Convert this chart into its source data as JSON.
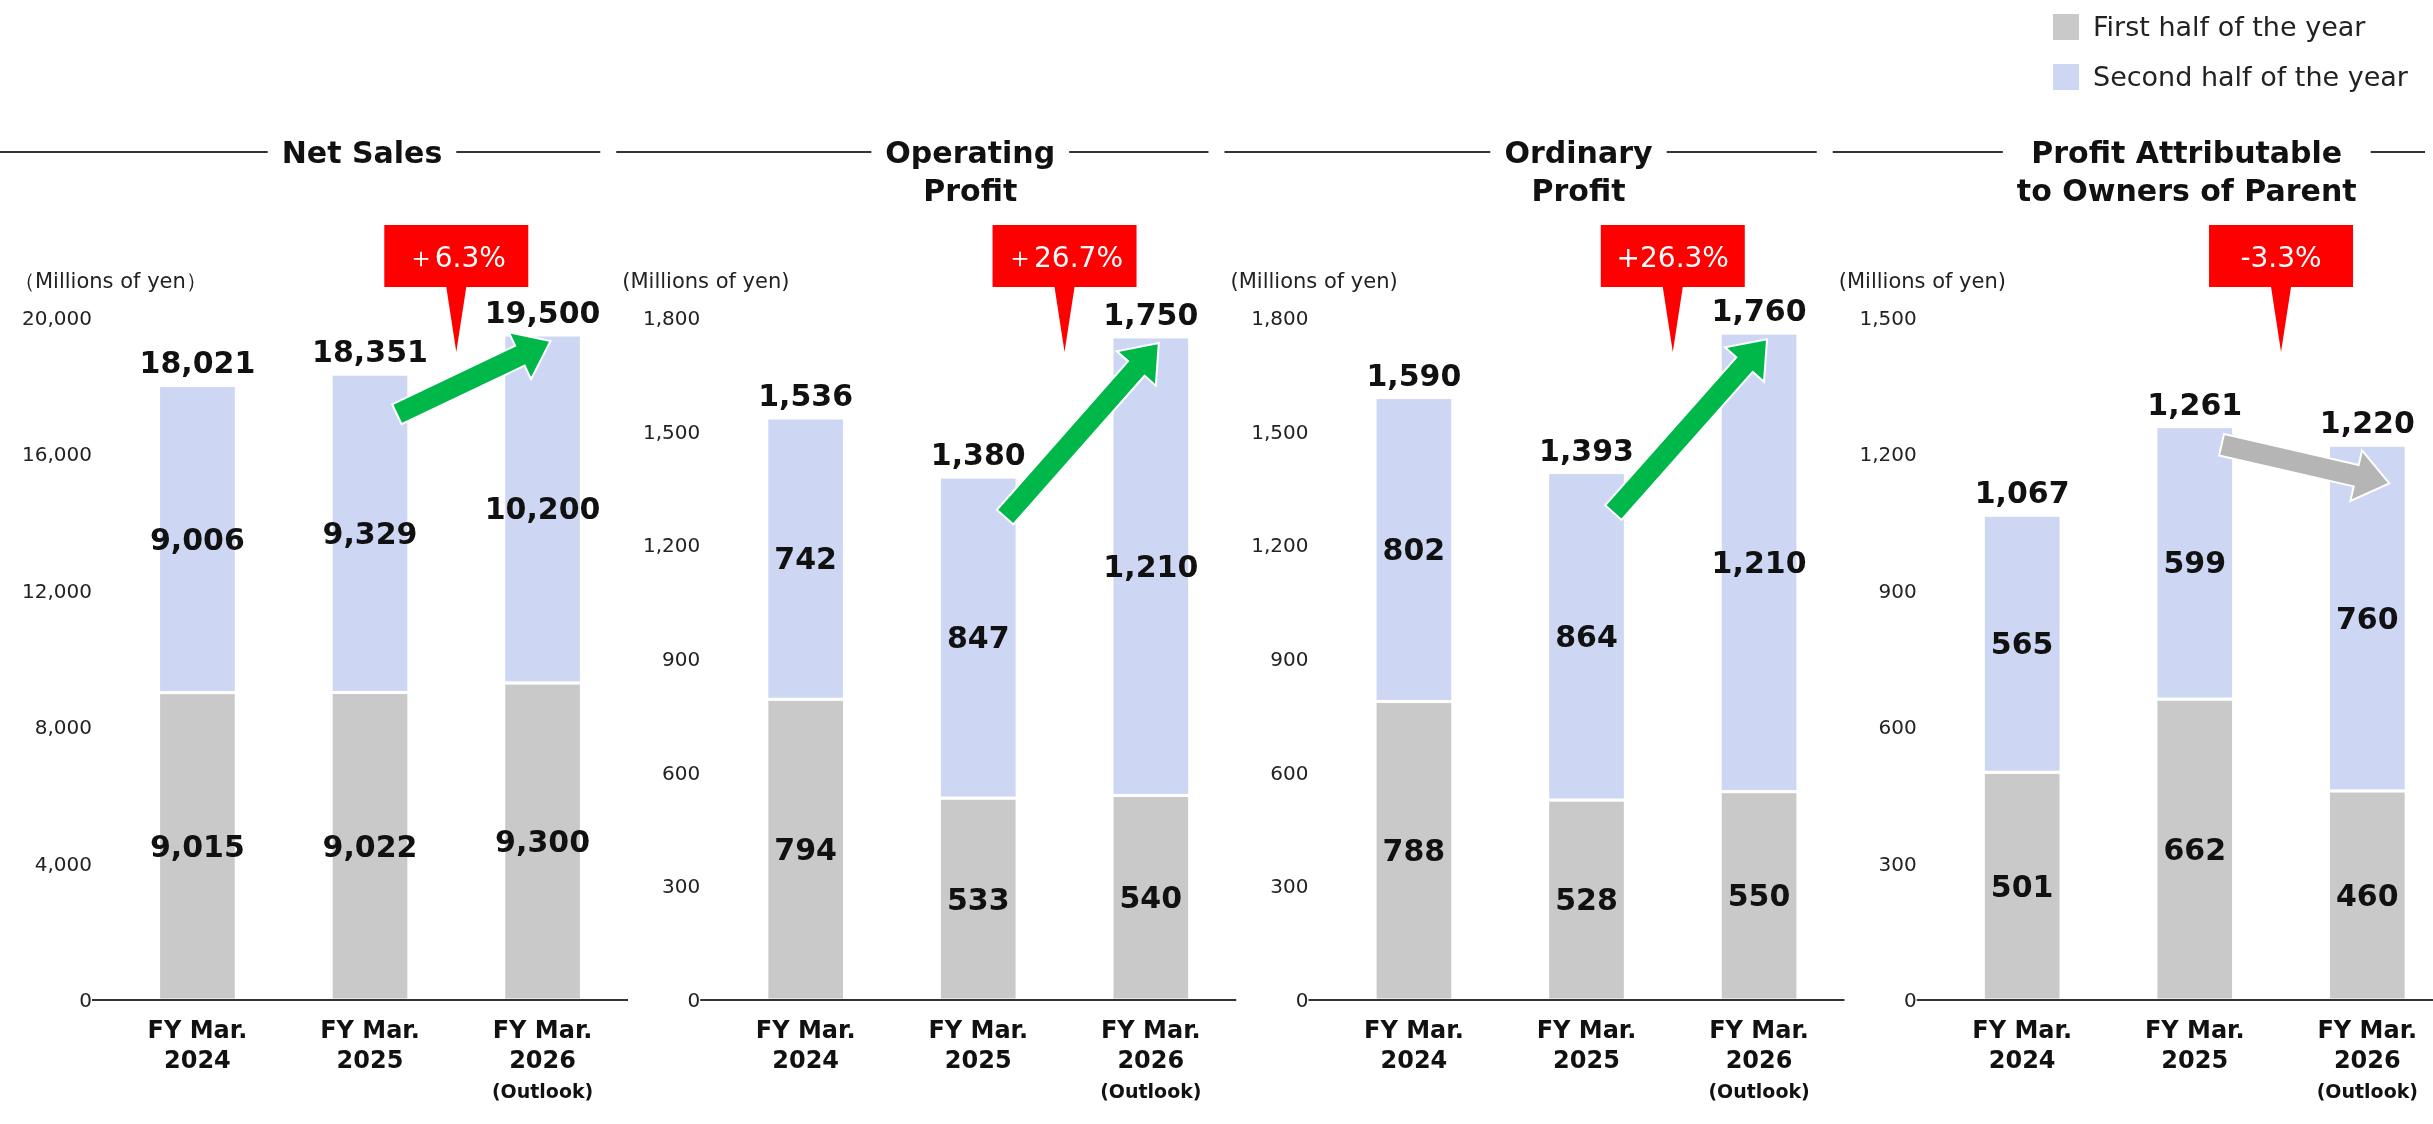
{
  "chart_data": [
    {
      "type": "bar",
      "stacked": true,
      "title": "Net Sales",
      "ylabel": "（Millions of yen）",
      "categories": [
        "FY Mar. 2024",
        "FY Mar. 2025",
        "FY Mar. 2026 (Outlook)"
      ],
      "series": [
        {
          "name": "First half of the year",
          "color": "#c9c9c9",
          "values": [
            9015,
            9022,
            9300
          ],
          "value_labels": [
            "9,015",
            "9,022",
            "9,300"
          ]
        },
        {
          "name": "Second half of the year",
          "color": "#cdd6f2",
          "values": [
            9006,
            9329,
            10200
          ],
          "value_labels": [
            "9,006",
            "9,329",
            "10,200"
          ]
        }
      ],
      "ylim": [
        0,
        20000
      ],
      "yticks": [
        0,
        {
          "value": 4000,
          "label": "4,000"
        },
        {
          "value": 8000,
          "label": "8,000"
        },
        {
          "value": 12000,
          "label": "12,000"
        },
        {
          "value": 16000,
          "label": "16,000"
        },
        {
          "value": 20000,
          "label": "20,000"
        }
      ],
      "totals": [
        "18,021",
        "18,351",
        "19,500"
      ],
      "annotations": [
        "＋6.3%"
      ],
      "legend": "top right"
    },
    {
      "type": "bar",
      "stacked": true,
      "title": "Operating\nProfit",
      "ylabel": "(Millions of yen)",
      "categories": [
        "FY Mar. 2024",
        "FY Mar. 2025",
        "FY Mar. 2026 (Outlook)"
      ],
      "series": [
        {
          "color": "#c9c9c9",
          "values": [
            794,
            533,
            540
          ],
          "value_labels": [
            "794",
            "533",
            "540"
          ]
        },
        {
          "color": "#cdd6f2",
          "values": [
            742,
            847,
            1210
          ],
          "value_labels": [
            "742",
            "847",
            "1,210"
          ]
        }
      ],
      "ylim": [
        0,
        1800
      ],
      "yticks": [
        0,
        300,
        600,
        900,
        {
          "value": 1200,
          "label": "1,200"
        },
        {
          "value": 1500,
          "label": "1,500"
        },
        {
          "value": 1800,
          "label": "1,800"
        }
      ],
      "totals": [
        "1,536",
        "1,380",
        "1,750"
      ],
      "annotations": [
        "＋26.7%"
      ]
    },
    {
      "type": "bar",
      "stacked": true,
      "title": "Ordinary\nProfit",
      "ylabel": "(Millions of yen)",
      "categories": [
        "FY Mar. 2024",
        "FY Mar. 2025",
        "FY Mar. 2026 (Outlook)"
      ],
      "series": [
        {
          "color": "#c9c9c9",
          "values": [
            788,
            528,
            550
          ],
          "value_labels": [
            "788",
            "528",
            "550"
          ]
        },
        {
          "color": "#cdd6f2",
          "values": [
            802,
            864,
            1210
          ],
          "value_labels": [
            "802",
            "864",
            "1,210"
          ]
        }
      ],
      "ylim": [
        0,
        1800
      ],
      "yticks": [
        0,
        300,
        600,
        900,
        {
          "value": 1200,
          "label": "1,200"
        },
        {
          "value": 1500,
          "label": "1,500"
        },
        {
          "value": 1800,
          "label": "1,800"
        }
      ],
      "totals": [
        "1,590",
        "1,393",
        "1,760"
      ],
      "annotations": [
        "+26.3%"
      ]
    },
    {
      "type": "bar",
      "stacked": true,
      "title": "Profit Attributable\nto Owners of Parent",
      "ylabel": "(Millions of yen)",
      "categories": [
        "FY Mar. 2024",
        "FY Mar. 2025",
        "FY Mar. 2026 (Outlook)"
      ],
      "series": [
        {
          "color": "#c9c9c9",
          "values": [
            501,
            662,
            460
          ],
          "value_labels": [
            "501",
            "662",
            "460"
          ]
        },
        {
          "color": "#cdd6f2",
          "values": [
            565,
            599,
            760
          ],
          "value_labels": [
            "565",
            "599",
            "760"
          ]
        }
      ],
      "ylim": [
        0,
        1500
      ],
      "yticks": [
        0,
        300,
        600,
        900,
        {
          "value": 1200,
          "label": "1,200"
        },
        {
          "value": 1500,
          "label": "1,500"
        }
      ],
      "totals": [
        "1,067",
        "1,261",
        "1,220"
      ],
      "annotations": [
        "-3.3%"
      ]
    }
  ]
}
